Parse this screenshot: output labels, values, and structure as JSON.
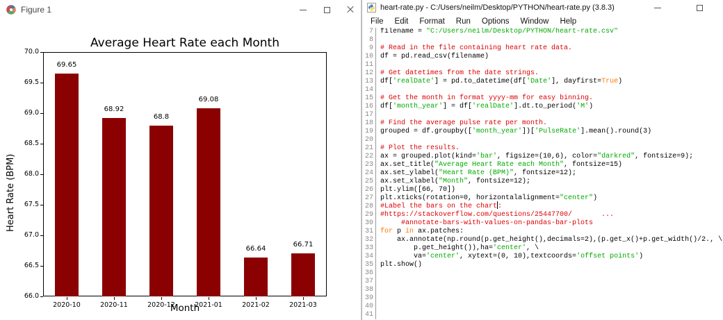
{
  "figure_window": {
    "title": "Figure 1",
    "icon": "matplotlib-logo",
    "controls": [
      "minimize",
      "maximize",
      "close"
    ]
  },
  "chart_data": {
    "type": "bar",
    "title": "Average Heart Rate each Month",
    "xlabel": "Month",
    "ylabel": "Heart Rate (BPM)",
    "categories": [
      "2020-10",
      "2020-11",
      "2020-12",
      "2021-01",
      "2021-02",
      "2021-03"
    ],
    "values": [
      69.65,
      68.92,
      68.8,
      69.08,
      66.64,
      66.71
    ],
    "bar_labels": [
      "69.65",
      "68.92",
      "68.8",
      "69.08",
      "66.64",
      "66.71"
    ],
    "ylim": [
      66,
      70
    ],
    "ytick_step": 0.5,
    "yticks": [
      "66.0",
      "66.5",
      "67.0",
      "67.5",
      "68.0",
      "68.5",
      "69.0",
      "69.5",
      "70.0"
    ],
    "bar_color": "#8b0000",
    "grid": false,
    "legend": "none"
  },
  "editor_window": {
    "title": "heart-rate.py - C:/Users/neilm/Desktop/PYTHON/heart-rate.py (3.8.3)",
    "icon": "python-file",
    "controls": [
      "minimize",
      "maximize"
    ],
    "menu": [
      "File",
      "Edit",
      "Format",
      "Run",
      "Options",
      "Window",
      "Help"
    ],
    "syntax_colors": {
      "normal": "#000000",
      "string": "#00aa00",
      "comment": "#dd0000",
      "keyword": "#ff7700",
      "line_number": "#888888"
    },
    "first_line_number": 7,
    "last_line_number": 41,
    "lines": [
      {
        "n": 7,
        "segs": [
          [
            "filename = ",
            "nor"
          ],
          [
            "\"C:/Users/neilm/Desktop/PYTHON/heart-rate.csv\"",
            "str"
          ]
        ]
      },
      {
        "n": 8,
        "segs": []
      },
      {
        "n": 9,
        "segs": [
          [
            "# Read in the file containing heart rate data.",
            "com"
          ]
        ]
      },
      {
        "n": 10,
        "segs": [
          [
            "df = pd.read_csv(filename)",
            "nor"
          ]
        ]
      },
      {
        "n": 11,
        "segs": []
      },
      {
        "n": 12,
        "segs": [
          [
            "# Get datetimes from the date strings.",
            "com"
          ]
        ]
      },
      {
        "n": 13,
        "segs": [
          [
            "df[",
            "nor"
          ],
          [
            "'realDate'",
            "str"
          ],
          [
            "] = pd.to_datetime(df[",
            "nor"
          ],
          [
            "'Date'",
            "str"
          ],
          [
            "], dayfirst=",
            "nor"
          ],
          [
            "True",
            "kw"
          ],
          [
            ")",
            "nor"
          ]
        ]
      },
      {
        "n": 14,
        "segs": []
      },
      {
        "n": 15,
        "segs": [
          [
            "# Get the month in format yyyy-mm for easy binning.",
            "com"
          ]
        ]
      },
      {
        "n": 16,
        "segs": [
          [
            "df[",
            "nor"
          ],
          [
            "'month_year'",
            "str"
          ],
          [
            "] = df[",
            "nor"
          ],
          [
            "'realDate'",
            "str"
          ],
          [
            "].dt.to_period(",
            "nor"
          ],
          [
            "'M'",
            "str"
          ],
          [
            ")",
            "nor"
          ]
        ]
      },
      {
        "n": 17,
        "segs": []
      },
      {
        "n": 18,
        "segs": [
          [
            "# Find the average pulse rate per month.",
            "com"
          ]
        ]
      },
      {
        "n": 19,
        "segs": [
          [
            "grouped = df.groupby([",
            "nor"
          ],
          [
            "'month_year'",
            "str"
          ],
          [
            "])[",
            "nor"
          ],
          [
            "'PulseRate'",
            "str"
          ],
          [
            "].mean().round(3)",
            "nor"
          ]
        ]
      },
      {
        "n": 20,
        "segs": []
      },
      {
        "n": 21,
        "segs": [
          [
            "# Plot the results.",
            "com"
          ]
        ]
      },
      {
        "n": 22,
        "segs": [
          [
            "ax = grouped.plot(kind=",
            "nor"
          ],
          [
            "'bar'",
            "str"
          ],
          [
            ", figsize=(10,6), color=",
            "nor"
          ],
          [
            "\"darkred\"",
            "str"
          ],
          [
            ", fontsize=9);",
            "nor"
          ]
        ]
      },
      {
        "n": 23,
        "segs": [
          [
            "ax.set_title(",
            "nor"
          ],
          [
            "\"Average Heart Rate each Month\"",
            "str"
          ],
          [
            ", fontsize=15)",
            "nor"
          ]
        ]
      },
      {
        "n": 24,
        "segs": [
          [
            "ax.set_ylabel(",
            "nor"
          ],
          [
            "\"Heart Rate (BPM)\"",
            "str"
          ],
          [
            ", fontsize=12);",
            "nor"
          ]
        ]
      },
      {
        "n": 25,
        "segs": [
          [
            "ax.set_xlabel(",
            "nor"
          ],
          [
            "\"Month\"",
            "str"
          ],
          [
            ", fontsize=12);",
            "nor"
          ]
        ]
      },
      {
        "n": 26,
        "segs": [
          [
            "plt.ylim([66, 70])",
            "nor"
          ]
        ]
      },
      {
        "n": 27,
        "segs": [
          [
            "plt.xticks(rotation=0, horizontalalignment=",
            "nor"
          ],
          [
            "\"center\"",
            "str"
          ],
          [
            ")",
            "nor"
          ]
        ]
      },
      {
        "n": 28,
        "segs": [
          [
            "#Label the bars on the chart",
            "com"
          ],
          [
            "",
            "caret"
          ],
          [
            ":",
            "com"
          ]
        ]
      },
      {
        "n": 29,
        "segs": [
          [
            "#https://stackoverflow.com/questions/25447700/       ...",
            "com"
          ]
        ]
      },
      {
        "n": 30,
        "segs": [
          [
            "     #annotate-bars-with-values-on-pandas-bar-plots",
            "com"
          ]
        ]
      },
      {
        "n": 31,
        "segs": [
          [
            "for",
            "kw"
          ],
          [
            " p ",
            "nor"
          ],
          [
            "in",
            "kw"
          ],
          [
            " ax.patches:",
            "nor"
          ]
        ]
      },
      {
        "n": 32,
        "segs": [
          [
            "    ax.annotate(np.round(p.get_height(),decimals=2),(p.get_x()+p.get_width()/2., \\",
            "nor"
          ]
        ]
      },
      {
        "n": 33,
        "segs": [
          [
            "        p.get_height()),ha=",
            "nor"
          ],
          [
            "'center'",
            "str"
          ],
          [
            ", \\",
            "nor"
          ]
        ]
      },
      {
        "n": 34,
        "segs": [
          [
            "        va=",
            "nor"
          ],
          [
            "'center'",
            "str"
          ],
          [
            ", xytext=(0, 10),textcoords=",
            "nor"
          ],
          [
            "'offset points'",
            "str"
          ],
          [
            ")",
            "nor"
          ]
        ]
      },
      {
        "n": 35,
        "segs": [
          [
            "plt.show()",
            "nor"
          ]
        ]
      },
      {
        "n": 36,
        "segs": []
      },
      {
        "n": 37,
        "segs": []
      },
      {
        "n": 38,
        "segs": []
      },
      {
        "n": 39,
        "segs": []
      },
      {
        "n": 40,
        "segs": []
      },
      {
        "n": 41,
        "segs": []
      }
    ]
  }
}
